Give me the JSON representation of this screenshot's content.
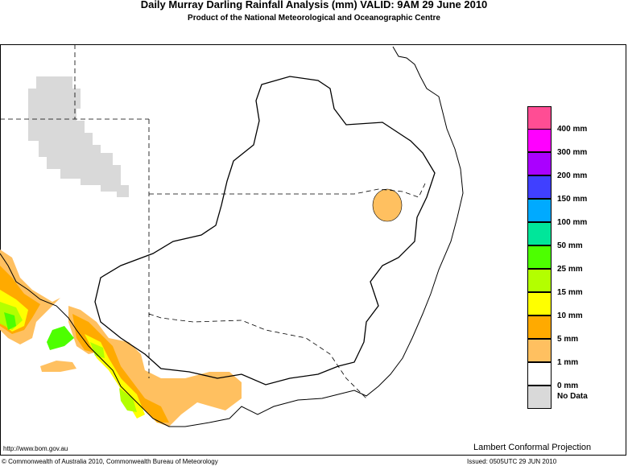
{
  "title": "Daily Murray Darling Rainfall Analysis (mm)  VALID: 9AM 29 June 2010",
  "subtitle": "Product of the National Meteorological and Oceanographic Centre",
  "legend": [
    {
      "label": "400 mm",
      "color": "#ff4d94"
    },
    {
      "label": "300 mm",
      "color": "#ff00ff"
    },
    {
      "label": "200 mm",
      "color": "#aa00ff"
    },
    {
      "label": "150 mm",
      "color": "#4040ff"
    },
    {
      "label": "100 mm",
      "color": "#00aaff"
    },
    {
      "label": "50 mm",
      "color": "#00e69a"
    },
    {
      "label": "25 mm",
      "color": "#4dff00"
    },
    {
      "label": "15 mm",
      "color": "#b3ff00"
    },
    {
      "label": "10 mm",
      "color": "#ffff00"
    },
    {
      "label": "5 mm",
      "color": "#ffaa00"
    },
    {
      "label": "1 mm",
      "color": "#ffc060"
    },
    {
      "label": "0 mm",
      "color": "#ffffff"
    },
    {
      "label": "No Data",
      "color": "#d9d9d9"
    }
  ],
  "url": "http://www.bom.gov.au",
  "projection": "Lambert Conformal Projection",
  "copyright": "© Commonwealth of Australia 2010, Commonwealth Bureau of Meteorology",
  "issued": "Issued: 0505UTC 29 JUN 2010"
}
